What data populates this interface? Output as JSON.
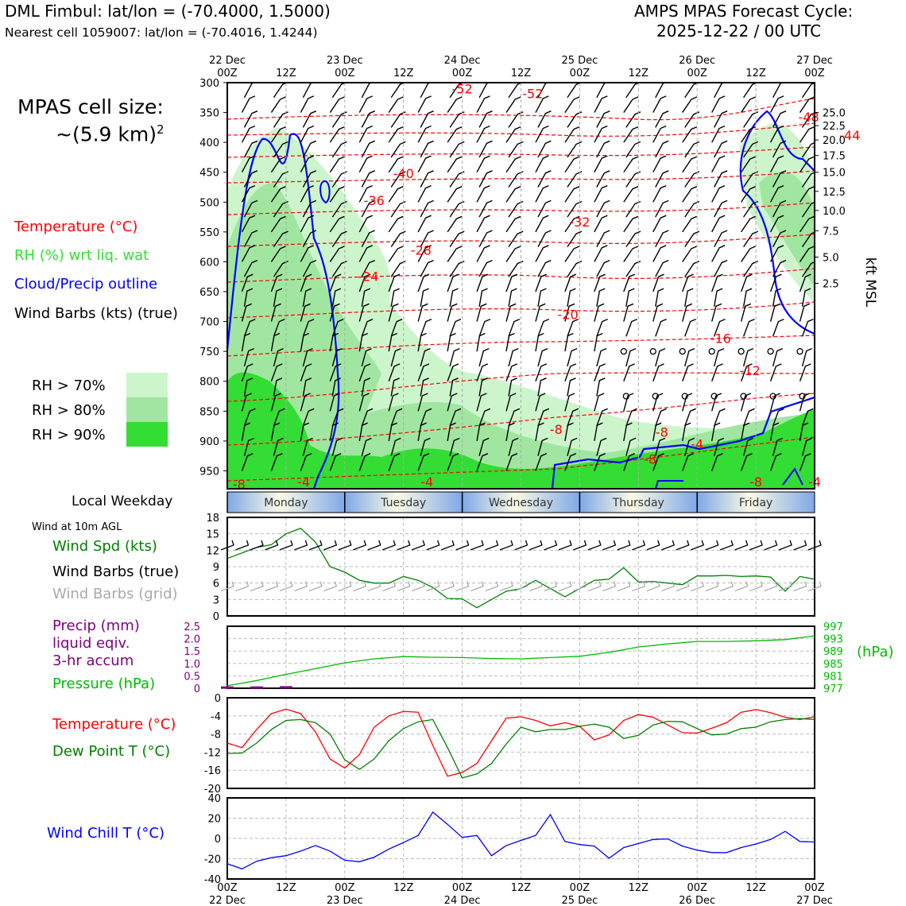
{
  "header": {
    "title": "DML Fimbul: lat/lon = (-70.4000, 1.5000)",
    "subtitle": "Nearest cell 1059007: lat/lon = (-70.4016, 1.4244)",
    "cycle_line1": "AMPS MPAS Forecast Cycle:",
    "cycle_line2": "2025-12-22 / 00 UTC"
  },
  "cell_size": {
    "line1": "MPAS cell size:",
    "line2": "~(5.9 km)",
    "sup": "2"
  },
  "legend": {
    "temperature": "Temperature (°C)",
    "rh": "RH (%) wrt liq. wat",
    "cloud": "Cloud/Precip outline",
    "wind": "Wind Barbs (kts) (true)",
    "rh70": "RH > 70%",
    "rh80": "RH > 80%",
    "rh90": "RH > 90%"
  },
  "colors": {
    "rh70": "#ccf5cc",
    "rh80": "#a0e6a0",
    "rh90": "#33dd33",
    "temp": "#ff0000",
    "cloud": "#0000ff",
    "dew": "#008000",
    "press": "#00bb00",
    "precip": "#800080",
    "chill": "#0000ff",
    "grid_barb": "#aaaaaa"
  },
  "time_axis": {
    "top_days": [
      "22 Dec\n00Z",
      "12Z",
      "23 Dec\n00Z",
      "12Z",
      "24 Dec\n00Z",
      "12Z",
      "25 Dec\n00Z",
      "12Z",
      "26 Dec\n00Z",
      "12Z",
      "27 Dec\n00Z"
    ],
    "bottom_labels": [
      "00Z\n22 Dec",
      "12Z",
      "00Z\n23 Dec",
      "12Z",
      "00Z\n24 Dec",
      "12Z",
      "00Z\n25 Dec",
      "12Z",
      "00Z\n26 Dec",
      "12Z",
      "00Z\n27 Dec"
    ]
  },
  "weekday": {
    "title": "Local Weekday",
    "days": [
      "Monday",
      "Tuesday",
      "Wednesday",
      "Thursday",
      "Friday"
    ]
  },
  "chart_data": [
    {
      "type": "heatmap",
      "name": "cross-section",
      "pressure_ticks": [
        300,
        350,
        400,
        450,
        500,
        550,
        600,
        650,
        700,
        750,
        800,
        850,
        900,
        950
      ],
      "kft_ticks": [
        "25.0",
        "22.5",
        "20.0",
        "17.5",
        "15.0",
        "12.5",
        "10.0",
        "7.5",
        "5.0",
        "2.5"
      ],
      "kft_pressures": [
        350,
        372,
        396,
        422,
        450,
        482,
        514,
        548,
        592,
        636
      ],
      "right_label": "kft MSL",
      "temp_labels": [
        {
          "text": "-52",
          "t": 40,
          "p": 310
        },
        {
          "text": "-52",
          "t": 52,
          "p": 318
        },
        {
          "text": "-48",
          "t": 99,
          "p": 357
        },
        {
          "text": "-44",
          "t": 106,
          "p": 388
        },
        {
          "text": "-40",
          "t": 30,
          "p": 452
        },
        {
          "text": "-36",
          "t": 25,
          "p": 497
        },
        {
          "text": "-32",
          "t": 60,
          "p": 533
        },
        {
          "text": "-28",
          "t": 33,
          "p": 580
        },
        {
          "text": "-24",
          "t": 24,
          "p": 624
        },
        {
          "text": "-20",
          "t": 58,
          "p": 688
        },
        {
          "text": "-16",
          "t": 84,
          "p": 728
        },
        {
          "text": "-12",
          "t": 89,
          "p": 782
        },
        {
          "text": "-8",
          "t": 56,
          "p": 880
        },
        {
          "text": "-8",
          "t": 74,
          "p": 885
        },
        {
          "text": "-4",
          "t": 80,
          "p": 905
        },
        {
          "text": "-8",
          "t": 72,
          "p": 930
        },
        {
          "text": "-8",
          "t": 2,
          "p": 972
        },
        {
          "text": "-4",
          "t": 13,
          "p": 968
        },
        {
          "text": "-4",
          "t": 34,
          "p": 968
        },
        {
          "text": "-8",
          "t": 90,
          "p": 968
        },
        {
          "text": "-4",
          "t": 100,
          "p": 968
        }
      ],
      "title": "",
      "xlabel": "",
      "ylabel": ""
    },
    {
      "type": "line",
      "name": "wind10m",
      "ylim": [
        0,
        18
      ],
      "yticks": [
        0,
        3,
        6,
        9,
        12,
        15,
        18
      ],
      "x_hours": [
        0,
        6,
        9,
        12,
        15,
        18,
        21,
        24,
        27,
        30,
        33,
        36,
        39,
        42,
        45,
        48,
        51,
        54,
        57,
        60,
        63,
        66,
        69,
        72,
        75,
        78,
        81,
        84,
        87,
        90,
        93,
        96,
        99,
        102,
        105,
        108,
        111,
        114,
        117,
        120
      ],
      "series": [
        {
          "name": "Wind Spd (kts)",
          "values": [
            10.5,
            12.5,
            13,
            15,
            16,
            13.5,
            9,
            8,
            6.5,
            6,
            6,
            7.2,
            6.5,
            5.2,
            3.2,
            3.1,
            1.5,
            3,
            4.5,
            5,
            6.5,
            5,
            3.5,
            5,
            6.5,
            6.7,
            8.8,
            6.2,
            6.3,
            6,
            5.7,
            7.3,
            7.3,
            7.4,
            7.2,
            7.3,
            7.1,
            4.5,
            7.2,
            6.7
          ]
        },
        {
          "name": "Wind Barbs (grid)",
          "values": []
        }
      ],
      "labels": {
        "speed": "Wind Spd (kts)",
        "barbs": "Wind Barbs (true)",
        "grid": "Wind Barbs (grid)",
        "at": "Wind at 10m AGL"
      }
    },
    {
      "type": "line",
      "name": "precip-pressure",
      "y_left": [
        0,
        0.5,
        1.0,
        1.5,
        2.0,
        2.5
      ],
      "y_right": [
        977,
        981,
        985,
        989,
        993,
        997
      ],
      "x_hours": [
        0,
        6,
        12,
        18,
        24,
        30,
        36,
        42,
        48,
        54,
        60,
        66,
        72,
        78,
        84,
        90,
        96,
        102,
        108,
        114,
        120
      ],
      "series": [
        {
          "name": "Pressure (hPa)",
          "values": [
            977.8,
            979.5,
            981.5,
            983.3,
            985.2,
            986.5,
            987.2,
            987.0,
            986.9,
            986.6,
            986.5,
            986.9,
            987.3,
            988.6,
            990.3,
            991.3,
            992.1,
            992.1,
            992.3,
            992.7,
            993.9
          ]
        },
        {
          "name": "Precip (mm)",
          "values": [
            0.01,
            0.01,
            0.02,
            0,
            0,
            0,
            0,
            0,
            0,
            0,
            0,
            0,
            0,
            0,
            0,
            0,
            0,
            0,
            0,
            0,
            0
          ]
        }
      ],
      "labels": {
        "precip1": "Precip (mm)",
        "precip2": "liquid eqiv.",
        "precip3": "3-hr accum",
        "pressure": "Pressure (hPa)",
        "unit": "(hPa)"
      }
    },
    {
      "type": "line",
      "name": "temp-dew",
      "ylim": [
        -20,
        0
      ],
      "yticks": [
        0,
        -4,
        -8,
        -12,
        -16,
        -20
      ],
      "x_hours": [
        0,
        3,
        6,
        9,
        12,
        15,
        18,
        21,
        24,
        27,
        30,
        33,
        36,
        39,
        42,
        45,
        48,
        51,
        54,
        57,
        60,
        63,
        66,
        69,
        72,
        75,
        78,
        81,
        84,
        87,
        90,
        93,
        96,
        99,
        102,
        105,
        108,
        111,
        114,
        117,
        120
      ],
      "series": [
        {
          "name": "Temperature (°C)",
          "values": [
            -10,
            -11,
            -7,
            -3.5,
            -2.5,
            -3.5,
            -7.5,
            -13.5,
            -15.5,
            -12.5,
            -6.5,
            -4,
            -3,
            -3.2,
            -10.5,
            -17.3,
            -16.5,
            -14.5,
            -9.5,
            -4.5,
            -4.2,
            -5,
            -6.2,
            -5.5,
            -6.3,
            -9.3,
            -8.2,
            -5,
            -3.7,
            -4.3,
            -6,
            -7.7,
            -7.8,
            -6.7,
            -5.5,
            -3.2,
            -2.6,
            -3.3,
            -4.3,
            -4.8,
            -4.2
          ]
        },
        {
          "name": "Dew Point T (°C)",
          "values": [
            -12.3,
            -12.2,
            -10,
            -7,
            -5,
            -4.8,
            -5.5,
            -8,
            -13.7,
            -15.8,
            -13.5,
            -9.5,
            -6.8,
            -5.3,
            -4.8,
            -11,
            -17.7,
            -16.8,
            -14.5,
            -10.2,
            -6.5,
            -7.5,
            -7,
            -7,
            -6.3,
            -5.8,
            -6.5,
            -9,
            -8.3,
            -6,
            -5.2,
            -5.3,
            -6.8,
            -8.2,
            -8,
            -6.8,
            -6.5,
            -5.3,
            -4.8,
            -4.6,
            -4.8
          ]
        }
      ],
      "labels": {
        "temp": "Temperature (°C)",
        "dew": "Dew Point T (°C)"
      }
    },
    {
      "type": "line",
      "name": "windchill",
      "ylim": [
        -40,
        40
      ],
      "yticks": [
        40,
        20,
        0,
        -20,
        -40
      ],
      "x_hours": [
        0,
        3,
        6,
        9,
        12,
        15,
        18,
        21,
        24,
        27,
        30,
        33,
        36,
        39,
        42,
        45,
        48,
        51,
        54,
        57,
        60,
        63,
        66,
        69,
        72,
        75,
        78,
        81,
        84,
        87,
        90,
        93,
        96,
        99,
        102,
        105,
        108,
        111,
        114,
        117,
        120
      ],
      "series": [
        {
          "name": "Wind Chill T (°C)",
          "values": [
            -25,
            -30,
            -22.5,
            -19,
            -17,
            -12.5,
            -7,
            -12.5,
            -21.5,
            -23,
            -18.5,
            -10.5,
            -4,
            3,
            26,
            14,
            1,
            3,
            -17,
            -7,
            -2,
            3,
            23.5,
            -3,
            -6,
            -7.5,
            -19.5,
            -9,
            -5,
            -1,
            -0.5,
            -7.5,
            -11.5,
            -14,
            -14,
            -9,
            -5.5,
            -1,
            7,
            -3,
            -3.5
          ]
        }
      ],
      "labels": {
        "chill": "Wind Chill T (°C)"
      }
    }
  ]
}
